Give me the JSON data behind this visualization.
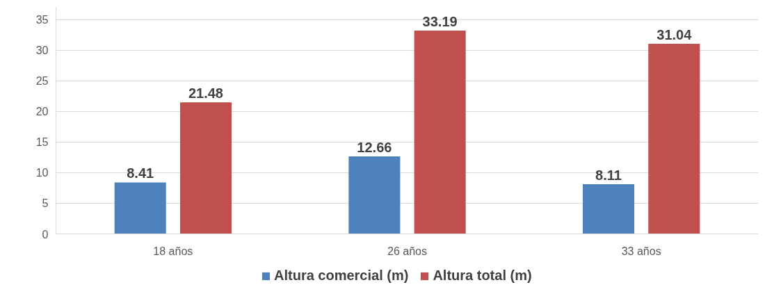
{
  "chart_data": {
    "type": "bar",
    "categories": [
      "18 años",
      "26 años",
      "33 años"
    ],
    "series": [
      {
        "name": "Altura comercial (m)",
        "color": "#4f81bd",
        "values": [
          8.41,
          12.66,
          8.11
        ]
      },
      {
        "name": "Altura total (m)",
        "color": "#c0504d",
        "values": [
          21.48,
          33.19,
          31.04
        ]
      }
    ],
    "ylim": [
      0,
      37
    ],
    "yticks": [
      0,
      5,
      10,
      15,
      20,
      25,
      30,
      35
    ],
    "grid": "y",
    "legend": "bottom",
    "data_labels": true
  }
}
